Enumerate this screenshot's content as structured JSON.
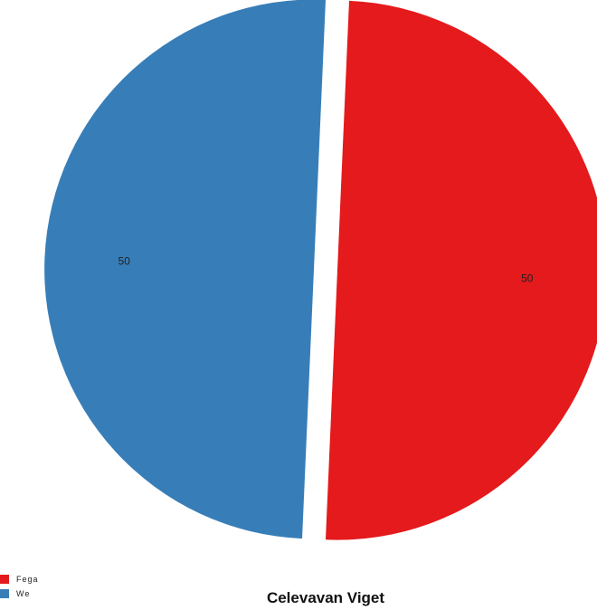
{
  "chart_data": {
    "type": "pie",
    "title": "Celevavan Viget",
    "start_angle_deg": 2.5,
    "slices": [
      {
        "label": "Fega",
        "value": 50,
        "color": "#e41a1c"
      },
      {
        "label": "We",
        "value": 50,
        "color": "#377eb8"
      }
    ],
    "data_labels": [
      "50",
      "50"
    ],
    "legend_position": "bottom-left",
    "exploded": true
  }
}
